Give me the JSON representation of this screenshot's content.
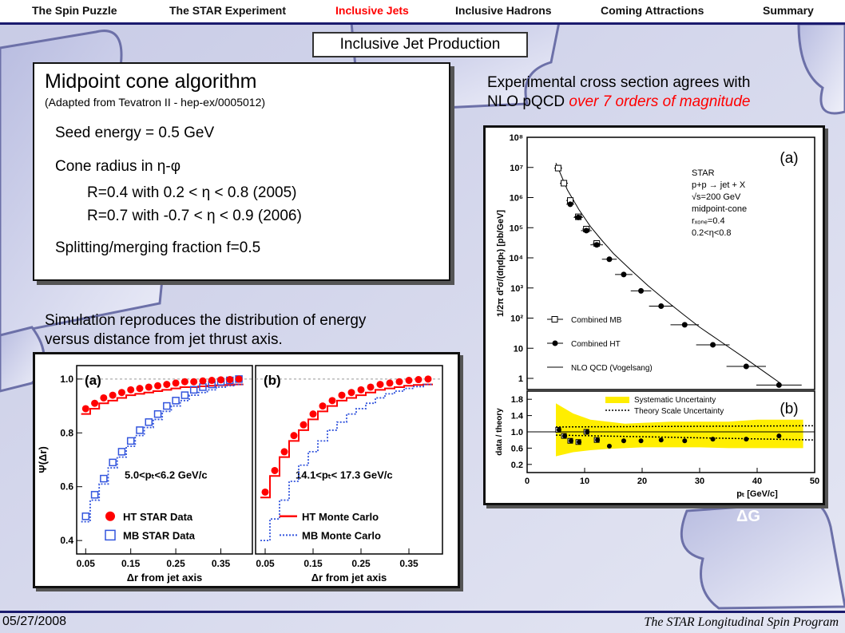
{
  "nav": {
    "items": [
      "The Spin Puzzle",
      "The STAR Experiment",
      "Inclusive Jets",
      "Inclusive Hadrons",
      "Coming Attractions",
      "Summary"
    ],
    "active_index": 2,
    "active_color": "#ff0000",
    "bar_color": "#1a1a6e"
  },
  "slide": {
    "title": "Inclusive Jet Production",
    "algorithm": {
      "heading": "Midpoint cone algorithm",
      "source": "(Adapted from Tevatron II - hep-ex/0005012)",
      "seed": "Seed energy = 0.5 GeV",
      "cone": "Cone radius in η-φ",
      "r1": "R=0.4 with  0.2 < η < 0.8 (2005)",
      "r2": "R=0.7 with -0.7 < η < 0.9 (2006)",
      "split": "Splitting/merging fraction f=0.5"
    },
    "right_caption": {
      "line1": "Experimental cross section agrees with",
      "line2_plain": "NLO pQCD ",
      "line2_red": "over 7 orders of magnitude"
    },
    "left_caption": {
      "line1": "Simulation reproduces the distribution of energy",
      "line2": "versus distance from jet thrust axis."
    },
    "deco_label": "ΔG"
  },
  "footer": {
    "date": "05/27/2008",
    "program": "The STAR Longitudinal Spin Program"
  },
  "chart_data": [
    {
      "type": "scatter",
      "panel": "(a) left",
      "label": "(a)",
      "ylabel": "Ψ(Δr)",
      "xlabel": "Δr from jet axis",
      "xticks": [
        "0.05",
        "0.15",
        "0.25",
        "0.35"
      ],
      "yticks": [
        "0.4",
        "0.6",
        "0.8",
        "1.0"
      ],
      "xlim": [
        0.03,
        0.42
      ],
      "ylim": [
        0.35,
        1.05
      ],
      "annotation": "5.0<pₜ<6.2 GeV/c",
      "legend": [
        "HT STAR Data",
        "MB STAR Data"
      ],
      "series": [
        {
          "name": "HT STAR Data",
          "x": [
            0.05,
            0.07,
            0.09,
            0.11,
            0.13,
            0.15,
            0.17,
            0.19,
            0.21,
            0.23,
            0.25,
            0.27,
            0.29,
            0.31,
            0.33,
            0.35,
            0.37,
            0.39
          ],
          "y": [
            0.89,
            0.91,
            0.93,
            0.94,
            0.95,
            0.96,
            0.965,
            0.97,
            0.975,
            0.98,
            0.985,
            0.99,
            0.99,
            0.993,
            0.995,
            0.997,
            0.998,
            1.0
          ]
        },
        {
          "name": "MB STAR Data",
          "x": [
            0.05,
            0.07,
            0.09,
            0.11,
            0.13,
            0.15,
            0.17,
            0.19,
            0.21,
            0.23,
            0.25,
            0.27,
            0.29,
            0.31,
            0.33,
            0.35,
            0.37,
            0.39
          ],
          "y": [
            0.49,
            0.57,
            0.63,
            0.69,
            0.73,
            0.77,
            0.81,
            0.84,
            0.87,
            0.9,
            0.92,
            0.94,
            0.96,
            0.97,
            0.98,
            0.99,
            0.995,
            1.0
          ]
        }
      ]
    },
    {
      "type": "scatter",
      "panel": "(b) left",
      "label": "(b)",
      "xlabel": "Δr from jet axis",
      "xticks": [
        "0.05",
        "0.15",
        "0.25",
        "0.35"
      ],
      "xlim": [
        0.03,
        0.42
      ],
      "ylim": [
        0.35,
        1.05
      ],
      "annotation": "14.1<pₜ< 17.3 GeV/c",
      "legend": [
        "HT Monte Carlo",
        "MB Monte Carlo"
      ],
      "series": [
        {
          "name": "HT STAR Data",
          "x": [
            0.05,
            0.07,
            0.09,
            0.11,
            0.13,
            0.15,
            0.17,
            0.19,
            0.21,
            0.23,
            0.25,
            0.27,
            0.29,
            0.31,
            0.33,
            0.35,
            0.37,
            0.39
          ],
          "y": [
            0.58,
            0.66,
            0.73,
            0.79,
            0.83,
            0.87,
            0.9,
            0.92,
            0.94,
            0.95,
            0.96,
            0.97,
            0.98,
            0.985,
            0.99,
            0.995,
            0.998,
            1.0
          ]
        }
      ]
    },
    {
      "type": "scatter",
      "panel": "(a) right",
      "label": "(a)",
      "ylabel": "1/2π d²σ/(dηdpₜ) [pb/GeV]",
      "yscale": "log",
      "yticks": [
        "1",
        "10",
        "10²",
        "10³",
        "10⁴",
        "10⁵",
        "10⁶",
        "10⁷",
        "10⁸"
      ],
      "xlim": [
        0,
        50
      ],
      "ylim": [
        1,
        100000000
      ],
      "info": [
        "STAR",
        "p+p → jet + X",
        "√s=200  GeV",
        "midpoint-cone",
        "rₓₒₙₑ=0.4",
        "0.2<η<0.8"
      ],
      "legend": [
        "Combined MB",
        "Combined HT",
        "NLO QCD (Vogelsang)"
      ],
      "series": [
        {
          "name": "Combined MB",
          "x": [
            5.4,
            6.4,
            7.5,
            8.9,
            10.3,
            12.1
          ],
          "y": [
            9500000,
            3000000,
            800000,
            230000,
            90000,
            30000
          ]
        },
        {
          "name": "Combined HT",
          "x": [
            7.5,
            8.9,
            10.3,
            12.1,
            14.3,
            16.8,
            19.8,
            23.3,
            27.4,
            32.3,
            38.1,
            43.8
          ],
          "y": [
            600000,
            220000,
            80000,
            27000,
            9000,
            2800,
            800,
            250,
            60,
            13,
            2.5,
            0.6
          ]
        }
      ]
    },
    {
      "type": "scatter",
      "panel": "(b) right",
      "label": "(b)",
      "ylabel": "data / theory",
      "xlabel": "pₜ  [GeV/c]",
      "xticks": [
        "0",
        "10",
        "20",
        "30",
        "40",
        "50"
      ],
      "yticks": [
        "0.2",
        "0.6",
        "1.0",
        "1.4",
        "1.8"
      ],
      "xlim": [
        0,
        50
      ],
      "ylim": [
        0,
        2
      ],
      "legend": [
        "Systematic Uncertainty",
        "Theory Scale Uncertainty"
      ],
      "series": [
        {
          "name": "data/theory",
          "x": [
            5.4,
            6.4,
            7.5,
            8.9,
            10.3,
            12.1,
            14.3,
            16.8,
            19.8,
            23.3,
            27.4,
            32.3,
            38.1,
            43.8
          ],
          "y": [
            1.05,
            0.9,
            0.78,
            0.75,
            1.0,
            0.8,
            0.65,
            0.78,
            0.78,
            0.8,
            0.78,
            0.82,
            0.82,
            0.9
          ]
        }
      ]
    }
  ]
}
